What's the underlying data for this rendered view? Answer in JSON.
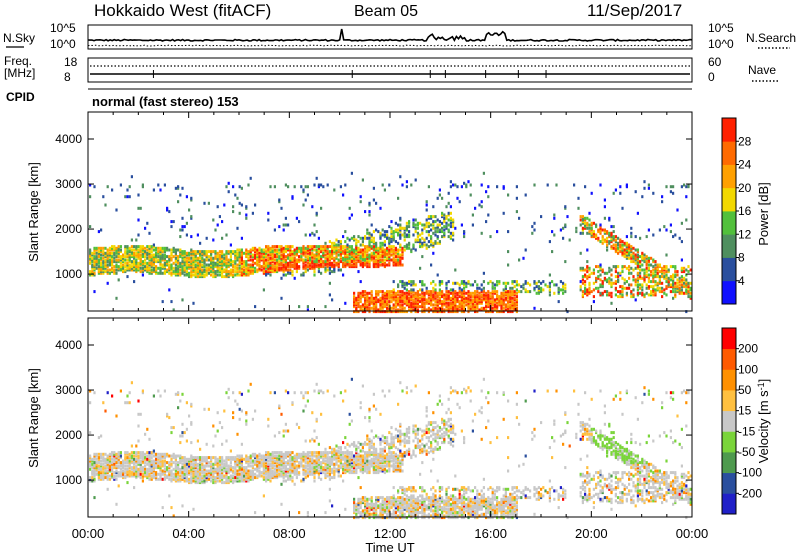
{
  "header": {
    "radar": "Hokkaido West (fitACF)",
    "beam": "Beam 05",
    "date": "11/Sep/2017"
  },
  "noise_panel": {
    "left_label": "N.Sky",
    "right_label": "N.Search",
    "left_ticks": [
      "10^5",
      "10^0"
    ],
    "right_ticks": [
      "10^5",
      "10^0"
    ]
  },
  "freq_panel": {
    "label_top": "Freq.",
    "label_unit": "[MHz]",
    "left_ticks": [
      "18",
      "8"
    ],
    "right_label": "Nave",
    "right_ticks": [
      "60",
      "0"
    ]
  },
  "cpid": {
    "label": "CPID",
    "value": "normal (fast stereo) 153"
  },
  "colors": {
    "power_scale": [
      "#1010ff",
      "#2a4f9e",
      "#4f8f5f",
      "#52c03c",
      "#f2d800",
      "#ffa000",
      "#ff6a00",
      "#ff2000"
    ],
    "velocity_scale": [
      "#2020c8",
      "#2a4f9e",
      "#4e9a4e",
      "#7ad43a",
      "#c8c8c8",
      "#ffc040",
      "#ff9000",
      "#ff5a00",
      "#ff0000"
    ]
  },
  "chart_data": [
    {
      "type": "heatmap",
      "name": "power",
      "ylabel": "Slant Range [km]",
      "ylim": [
        180,
        4600
      ],
      "y_ticks": [
        "4000",
        "3000",
        "2000",
        "1000"
      ],
      "x_ticks": [
        "00:00",
        "04:00",
        "08:00",
        "12:00",
        "16:00",
        "20:00",
        "00:00"
      ],
      "colorbar": {
        "label": "Power [dB]",
        "ticks": [
          "28",
          "24",
          "20",
          "16",
          "12",
          "8",
          "4"
        ],
        "range": [
          0,
          32
        ]
      },
      "regions": [
        {
          "t": [
            0,
            12.5
          ],
          "range": [
            1000,
            1600
          ],
          "power": "8-28"
        },
        {
          "t": [
            7.5,
            12.5
          ],
          "range": [
            950,
            1300
          ],
          "power": "24-28"
        },
        {
          "t": [
            10.5,
            15
          ],
          "range": [
            200,
            600
          ],
          "power": "20-28"
        },
        {
          "t": [
            14,
            16.5
          ],
          "range": [
            200,
            400
          ],
          "power": "24-28"
        },
        {
          "t": [
            19.5,
            24
          ],
          "range": [
            400,
            2200
          ],
          "power": "4-28"
        }
      ]
    },
    {
      "type": "heatmap",
      "name": "velocity",
      "ylabel": "Slant Range [km]",
      "xlabel": "Time UT",
      "ylim": [
        180,
        4600
      ],
      "y_ticks": [
        "4000",
        "3000",
        "2000",
        "1000"
      ],
      "x_ticks": [
        "00:00",
        "04:00",
        "08:00",
        "12:00",
        "16:00",
        "20:00",
        "00:00"
      ],
      "colorbar": {
        "label": "Velocity [m s-1]",
        "ticks": [
          "200",
          "100",
          "50",
          "15",
          "-15",
          "-50",
          "-100",
          "-200"
        ],
        "range": [
          -250,
          250
        ]
      }
    }
  ]
}
